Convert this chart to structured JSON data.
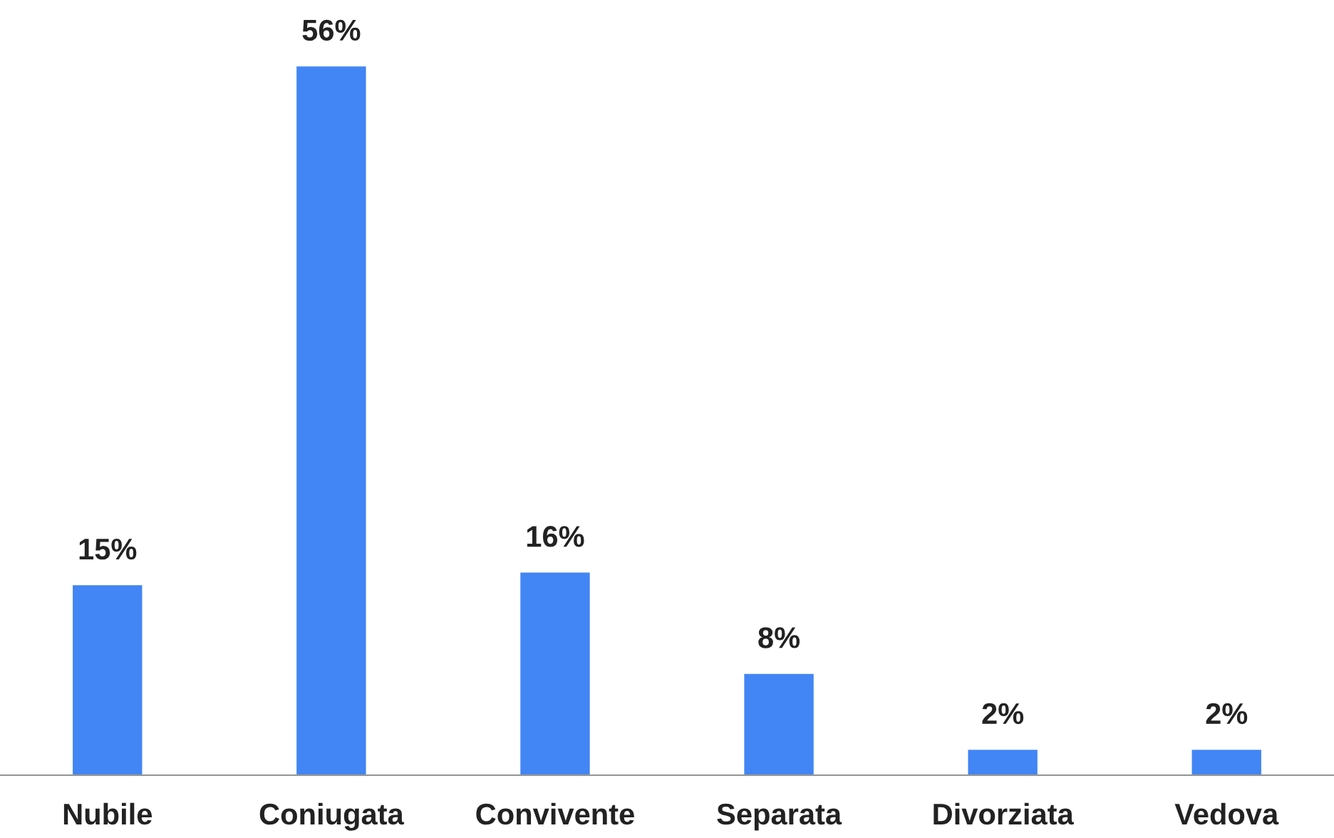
{
  "chart_data": {
    "type": "bar",
    "categories": [
      "Nubile",
      "Coniugata",
      "Convivente",
      "Separata",
      "Divorziata",
      "Vedova"
    ],
    "values": [
      15,
      56,
      16,
      8,
      2,
      2
    ],
    "value_labels": [
      "15%",
      "56%",
      "16%",
      "8%",
      "2%",
      "2%"
    ],
    "color": "#4285f4",
    "grid": false,
    "legend": false
  }
}
